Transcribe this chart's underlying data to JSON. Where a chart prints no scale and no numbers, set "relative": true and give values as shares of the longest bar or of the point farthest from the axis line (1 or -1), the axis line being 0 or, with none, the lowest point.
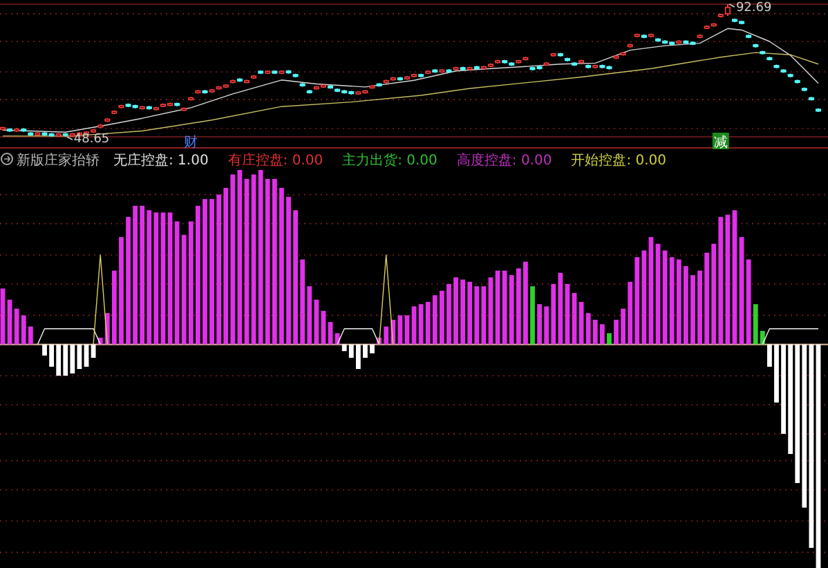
{
  "chart_data": [
    {
      "type": "candlestick",
      "categories": [
        null,
        null,
        null,
        null,
        null,
        null,
        null,
        null,
        null,
        null,
        null,
        null,
        null,
        null,
        null,
        null,
        null,
        null,
        null,
        null,
        null,
        null,
        null,
        null,
        null,
        null,
        null,
        null,
        null,
        null,
        null,
        null,
        null,
        null,
        null,
        null,
        null,
        null,
        null,
        null,
        null,
        null,
        null,
        null,
        null,
        null,
        null,
        null,
        null,
        null,
        null,
        null,
        null,
        null,
        null,
        null,
        null,
        null,
        null,
        null,
        null,
        null,
        null,
        null,
        null,
        null,
        null,
        null,
        null,
        null,
        null,
        null,
        null,
        null,
        null,
        null,
        null,
        null,
        null,
        null,
        null,
        null,
        null,
        null,
        null,
        null,
        null,
        null,
        null,
        null,
        null,
        null,
        null,
        null,
        null,
        null,
        null,
        null,
        null,
        null,
        null,
        null,
        null,
        null,
        null,
        null,
        null,
        null,
        null,
        null,
        null,
        null,
        null,
        null,
        null,
        null,
        null,
        null
      ],
      "ylim": [
        48.65,
        92.69
      ],
      "grid": true,
      "yticks": [
        {
          "value": 51.4,
          "label": null
        },
        {
          "value": 61.0,
          "label": null
        },
        {
          "value": 70.2,
          "label": null
        },
        {
          "value": 80.3,
          "label": null
        },
        {
          "value": 89.5,
          "label": null
        }
      ],
      "ohlc": [
        [
          51.1,
          52.0,
          50.8,
          51.7
        ],
        [
          51.2,
          51.5,
          50.3,
          50.6
        ],
        [
          50.6,
          51.5,
          50.3,
          51.2
        ],
        [
          51.2,
          51.5,
          50.3,
          50.6
        ],
        [
          49.9,
          50.2,
          49.0,
          49.3
        ],
        [
          49.3,
          50.2,
          49.0,
          49.9
        ],
        [
          49.9,
          50.2,
          49.0,
          49.3
        ],
        [
          49.6,
          49.9,
          48.7,
          49.0
        ],
        [
          49.0,
          49.9,
          48.7,
          49.6
        ],
        [
          49.6,
          49.9,
          48.65,
          49.3
        ],
        [
          49.0,
          49.9,
          48.7,
          49.6
        ],
        [
          49.3,
          50.2,
          49.0,
          49.9
        ],
        [
          49.6,
          50.5,
          49.3,
          50.2
        ],
        [
          50.3,
          51.2,
          50.0,
          50.9
        ],
        [
          51.9,
          52.8,
          51.6,
          52.5
        ],
        [
          53.9,
          54.8,
          53.6,
          54.5
        ],
        [
          56.5,
          57.4,
          56.2,
          57.1
        ],
        [
          58.4,
          59.3,
          58.1,
          59.0
        ],
        [
          59.4,
          59.7,
          58.5,
          58.8
        ],
        [
          59.0,
          59.3,
          58.1,
          58.4
        ],
        [
          58.0,
          58.9,
          57.7,
          58.6
        ],
        [
          58.6,
          58.9,
          57.7,
          58.0
        ],
        [
          57.7,
          58.6,
          57.4,
          58.3
        ],
        [
          58.8,
          59.7,
          58.5,
          59.4
        ],
        [
          59.1,
          60.0,
          58.8,
          59.7
        ],
        [
          59.7,
          60.0,
          58.8,
          59.1
        ],
        [
          57.5,
          58.4,
          57.2,
          58.1
        ],
        [
          61.0,
          61.9,
          60.7,
          61.6
        ],
        [
          63.3,
          64.2,
          63.0,
          63.9
        ],
        [
          63.9,
          64.2,
          63.0,
          63.3
        ],
        [
          63.6,
          64.5,
          63.3,
          64.2
        ],
        [
          64.6,
          65.5,
          64.3,
          65.2
        ],
        [
          65.2,
          66.1,
          64.9,
          65.8
        ],
        [
          66.7,
          67.6,
          66.4,
          67.3
        ],
        [
          67.8,
          68.1,
          66.9,
          67.2
        ],
        [
          66.7,
          67.6,
          66.4,
          67.3
        ],
        [
          68.2,
          69.1,
          67.9,
          68.8
        ],
        [
          70.4,
          70.7,
          69.5,
          69.8
        ],
        [
          69.8,
          70.7,
          69.5,
          70.4
        ],
        [
          70.4,
          70.7,
          69.5,
          69.8
        ],
        [
          69.8,
          70.7,
          69.5,
          70.4
        ],
        [
          70.5,
          70.8,
          69.6,
          69.9
        ],
        [
          69.3,
          69.6,
          68.4,
          68.7
        ],
        [
          66.2,
          66.5,
          65.3,
          65.6
        ],
        [
          63.9,
          64.2,
          63.0,
          63.3
        ],
        [
          64.6,
          65.5,
          64.3,
          65.2
        ],
        [
          65.2,
          66.1,
          64.9,
          65.8
        ],
        [
          65.5,
          65.8,
          64.6,
          64.9
        ],
        [
          64.4,
          64.7,
          63.5,
          63.8
        ],
        [
          63.9,
          64.2,
          63.0,
          63.3
        ],
        [
          63.6,
          63.9,
          62.7,
          63.0
        ],
        [
          62.9,
          63.8,
          62.6,
          63.5
        ],
        [
          63.3,
          64.2,
          63.0,
          63.9
        ],
        [
          64.9,
          65.8,
          64.6,
          65.5
        ],
        [
          66.2,
          66.5,
          65.3,
          65.6
        ],
        [
          66.7,
          67.6,
          66.4,
          67.3
        ],
        [
          67.6,
          68.5,
          67.3,
          68.2
        ],
        [
          68.2,
          68.5,
          67.3,
          67.6
        ],
        [
          67.9,
          68.8,
          67.6,
          68.5
        ],
        [
          68.7,
          69.6,
          68.4,
          69.3
        ],
        [
          69.3,
          69.6,
          68.4,
          68.7
        ],
        [
          69.8,
          70.7,
          69.5,
          70.4
        ],
        [
          70.8,
          71.1,
          69.9,
          70.2
        ],
        [
          70.2,
          71.1,
          69.9,
          70.8
        ],
        [
          70.8,
          71.1,
          69.9,
          70.2
        ],
        [
          71.0,
          71.9,
          70.7,
          71.6
        ],
        [
          71.6,
          71.9,
          70.7,
          71.0
        ],
        [
          71.0,
          71.9,
          70.7,
          71.6
        ],
        [
          71.9,
          72.2,
          71.0,
          71.3
        ],
        [
          71.3,
          72.2,
          71.0,
          71.9
        ],
        [
          72.1,
          73.0,
          71.8,
          72.7
        ],
        [
          73.3,
          74.2,
          73.0,
          73.9
        ],
        [
          73.9,
          74.2,
          73.0,
          73.3
        ],
        [
          73.1,
          73.4,
          72.2,
          72.5
        ],
        [
          73.3,
          74.2,
          73.0,
          73.9
        ],
        [
          74.3,
          75.2,
          74.0,
          74.9
        ],
        [
          71.6,
          71.9,
          70.7,
          71.0
        ],
        [
          71.9,
          72.2,
          71.0,
          71.3
        ],
        [
          72.5,
          73.4,
          72.2,
          73.1
        ],
        [
          75.6,
          76.5,
          75.3,
          76.2
        ],
        [
          76.2,
          76.5,
          75.3,
          75.6
        ],
        [
          74.6,
          74.9,
          73.7,
          74.0
        ],
        [
          73.1,
          73.4,
          72.2,
          72.5
        ],
        [
          73.3,
          74.2,
          73.0,
          73.9
        ],
        [
          72.3,
          72.6,
          71.4,
          71.7
        ],
        [
          71.7,
          72.6,
          71.4,
          72.3
        ],
        [
          72.3,
          72.6,
          71.4,
          71.7
        ],
        [
          71.9,
          72.2,
          71.0,
          71.3
        ],
        [
          74.8,
          75.7,
          74.5,
          75.4
        ],
        [
          75.9,
          76.8,
          75.6,
          76.5
        ],
        [
          78.6,
          79.5,
          78.3,
          79.2
        ],
        [
          82.0,
          82.9,
          81.7,
          82.6
        ],
        [
          82.3,
          82.6,
          81.4,
          81.7
        ],
        [
          82.0,
          82.9,
          81.7,
          82.6
        ],
        [
          81.1,
          81.4,
          80.2,
          80.5
        ],
        [
          80.4,
          80.7,
          79.5,
          79.8
        ],
        [
          80.0,
          80.3,
          79.1,
          79.4
        ],
        [
          79.8,
          80.7,
          79.5,
          80.4
        ],
        [
          80.4,
          80.7,
          79.5,
          79.8
        ],
        [
          80.0,
          80.3,
          79.1,
          79.4
        ],
        [
          81.7,
          82.6,
          81.4,
          82.3
        ],
        [
          84.7,
          85.6,
          84.4,
          85.3
        ],
        [
          85.5,
          86.4,
          85.2,
          86.1
        ],
        [
          88.6,
          89.5,
          88.3,
          89.2
        ],
        [
          89.5,
          92.69,
          88.8,
          91.6
        ],
        [
          87.6,
          87.9,
          86.7,
          87.0
        ],
        [
          86.9,
          87.2,
          86.0,
          86.3
        ],
        [
          82.3,
          82.6,
          81.4,
          81.7
        ],
        [
          79.2,
          79.5,
          78.3,
          78.6
        ],
        [
          76.9,
          77.2,
          76.0,
          76.3
        ],
        [
          74.9,
          75.2,
          74.0,
          74.3
        ],
        [
          72.3,
          72.6,
          71.4,
          71.7
        ],
        [
          70.8,
          71.1,
          69.9,
          70.2
        ],
        [
          69.3,
          69.6,
          68.4,
          68.7
        ],
        [
          67.3,
          67.6,
          66.4,
          66.7
        ],
        [
          64.7,
          65.0,
          63.8,
          64.1
        ],
        [
          61.6,
          61.9,
          60.7,
          61.0
        ],
        [
          57.8,
          58.1,
          56.9,
          57.2
        ]
      ],
      "series": [
        {
          "type": "line",
          "color": "#d8d8d8",
          "values": [
            50.9,
            null,
            null,
            null,
            null,
            null,
            null,
            null,
            null,
            50.2,
            null,
            null,
            null,
            null,
            null,
            52.6,
            null,
            null,
            null,
            null,
            54.8,
            null,
            null,
            null,
            null,
            null,
            null,
            58.3,
            null,
            null,
            null,
            null,
            null,
            62.9,
            null,
            null,
            null,
            null,
            null,
            null,
            67.5,
            null,
            null,
            null,
            null,
            66.2,
            null,
            null,
            null,
            null,
            null,
            null,
            65.2,
            null,
            null,
            null,
            null,
            null,
            null,
            67.4,
            null,
            null,
            null,
            null,
            null,
            70.5,
            null,
            null,
            null,
            null,
            71.3,
            null,
            null,
            null,
            null,
            72.0,
            null,
            null,
            null,
            null,
            72.8,
            null,
            null,
            null,
            null,
            73.1,
            null,
            null,
            null,
            null,
            77.4,
            null,
            null,
            null,
            null,
            78.9,
            null,
            null,
            null,
            null,
            79.7,
            null,
            null,
            null,
            84.6,
            null,
            84.1,
            null,
            null,
            null,
            80.3,
            null,
            null,
            75.7,
            null,
            null,
            null,
            66.4
          ]
        },
        {
          "type": "line",
          "color": "#c8c060",
          "values": [
            48.9,
            null,
            null,
            null,
            null,
            null,
            null,
            null,
            null,
            null,
            48.9,
            null,
            null,
            null,
            null,
            null,
            null,
            null,
            null,
            null,
            50.6,
            null,
            null,
            null,
            null,
            null,
            null,
            null,
            null,
            null,
            54.2,
            null,
            null,
            null,
            null,
            null,
            null,
            null,
            null,
            null,
            58.7,
            null,
            null,
            null,
            null,
            null,
            null,
            null,
            null,
            null,
            60.2,
            null,
            null,
            null,
            null,
            null,
            null,
            null,
            null,
            null,
            62.4,
            null,
            null,
            null,
            null,
            null,
            null,
            64.7,
            null,
            null,
            null,
            null,
            null,
            null,
            null,
            null,
            null,
            null,
            null,
            null,
            null,
            null,
            null,
            68.5,
            null,
            null,
            null,
            null,
            null,
            null,
            null,
            null,
            null,
            71.3,
            null,
            null,
            null,
            null,
            null,
            null,
            null,
            null,
            null,
            75.1,
            null,
            null,
            null,
            null,
            76.6,
            null,
            null,
            null,
            null,
            75.9,
            null,
            null,
            null,
            72.8
          ]
        }
      ],
      "annotations": [
        "财",
        "减",
        "92.69",
        "48.65"
      ]
    },
    {
      "type": "bar",
      "title": "新版庄家抬轿",
      "relative": true,
      "ref_lines": [
        {
          "axis": "y",
          "value": 0,
          "color": "#e8c0a0",
          "line_style": "solid"
        },
        {
          "axis": "y",
          "value": 0.67,
          "color": "#802020",
          "line_style": "dotted"
        },
        {
          "axis": "y",
          "value": 0.54,
          "color": "#802020",
          "line_style": "dotted"
        },
        {
          "axis": "y",
          "value": 0.4,
          "color": "#802020",
          "line_style": "dotted"
        },
        {
          "axis": "y",
          "value": 0.27,
          "color": "#802020",
          "line_style": "dotted"
        },
        {
          "axis": "y",
          "value": 0.13,
          "color": "#802020",
          "line_style": "dotted"
        },
        {
          "axis": "y",
          "value": -0.14,
          "color": "#802020",
          "line_style": "dotted"
        },
        {
          "axis": "y",
          "value": -0.27,
          "color": "#802020",
          "line_style": "dotted"
        },
        {
          "axis": "y",
          "value": -0.4,
          "color": "#802020",
          "line_style": "dotted"
        },
        {
          "axis": "y",
          "value": -0.52,
          "color": "#802020",
          "line_style": "dotted"
        },
        {
          "axis": "y",
          "value": -0.65,
          "color": "#802020",
          "line_style": "dotted"
        },
        {
          "axis": "y",
          "value": -0.79,
          "color": "#802020",
          "line_style": "dotted"
        },
        {
          "axis": "y",
          "value": -0.93,
          "color": "#802020",
          "line_style": "dotted"
        }
      ],
      "categories": [
        null,
        null,
        null,
        null,
        null,
        null,
        null,
        null,
        null,
        null,
        null,
        null,
        null,
        null,
        null,
        null,
        null,
        null,
        null,
        null,
        null,
        null,
        null,
        null,
        null,
        null,
        null,
        null,
        null,
        null,
        null,
        null,
        null,
        null,
        null,
        null,
        null,
        null,
        null,
        null,
        null,
        null,
        null,
        null,
        null,
        null,
        null,
        null,
        null,
        null,
        null,
        null,
        null,
        null,
        null,
        null,
        null,
        null,
        null,
        null,
        null,
        null,
        null,
        null,
        null,
        null,
        null,
        null,
        null,
        null,
        null,
        null,
        null,
        null,
        null,
        null,
        null,
        null,
        null,
        null,
        null,
        null,
        null,
        null,
        null,
        null,
        null,
        null,
        null,
        null,
        null,
        null,
        null,
        null,
        null,
        null,
        null,
        null,
        null,
        null,
        null,
        null,
        null,
        null,
        null,
        null,
        null,
        null,
        null,
        null,
        null,
        null,
        null,
        null,
        null,
        null,
        null,
        null
      ],
      "annotations": [
        "无庄控盘: 1.00",
        "有庄控盘: 0.00",
        "主力出货: 0.00",
        "高度控盘: 0.00",
        "开始控盘: 0.00"
      ],
      "series": [
        {
          "type": "bar",
          "values": [
            0.25,
            0.2,
            0.16,
            0.13,
            0.08,
            null,
            -0.05,
            -0.1,
            -0.14,
            -0.14,
            -0.13,
            -0.11,
            -0.1,
            -0.06,
            0.03,
            0.14,
            0.33,
            0.48,
            0.57,
            0.62,
            0.62,
            0.6,
            0.59,
            0.59,
            0.59,
            0.55,
            0.49,
            0.55,
            0.62,
            0.65,
            0.65,
            0.67,
            0.7,
            0.76,
            0.78,
            0.74,
            0.76,
            0.78,
            0.74,
            0.74,
            0.7,
            0.66,
            0.6,
            0.38,
            0.26,
            0.2,
            0.15,
            0.1,
            0.05,
            -0.03,
            -0.06,
            -0.11,
            -0.06,
            -0.04,
            0.03,
            0.08,
            0.11,
            0.13,
            0.13,
            0.17,
            0.18,
            0.19,
            0.22,
            0.24,
            0.27,
            0.3,
            0.29,
            0.28,
            0.26,
            0.26,
            0.3,
            0.33,
            0.33,
            0.31,
            0.34,
            0.37,
            0.26,
            0.18,
            0.17,
            0.27,
            0.32,
            0.27,
            0.23,
            0.19,
            0.14,
            0.11,
            0.09,
            0.05,
            0.11,
            0.16,
            0.28,
            0.39,
            0.42,
            0.48,
            0.45,
            0.42,
            0.39,
            0.38,
            0.35,
            0.31,
            0.33,
            0.41,
            0.45,
            0.57,
            0.58,
            0.6,
            0.48,
            0.38,
            0.18,
            0.06,
            -0.1,
            -0.26,
            -0.4,
            -0.49,
            -0.62,
            -0.73,
            -0.91,
            -1
          ],
          "colors": [
            "#e030e8",
            "#e030e8",
            "#e030e8",
            "#e030e8",
            "#e030e8",
            null,
            "#ffffff",
            "#ffffff",
            "#ffffff",
            "#ffffff",
            "#ffffff",
            "#ffffff",
            "#ffffff",
            "#ffffff",
            "#e030e8",
            "#e030e8",
            "#e030e8",
            "#e030e8",
            "#e030e8",
            "#e030e8",
            "#e030e8",
            "#e030e8",
            "#e030e8",
            "#e030e8",
            "#e030e8",
            "#e030e8",
            "#e030e8",
            "#e030e8",
            "#e030e8",
            "#e030e8",
            "#e030e8",
            "#e030e8",
            "#e030e8",
            "#e030e8",
            "#e030e8",
            "#e030e8",
            "#e030e8",
            "#e030e8",
            "#e030e8",
            "#e030e8",
            "#e030e8",
            "#e030e8",
            "#e030e8",
            "#e030e8",
            "#e030e8",
            "#e030e8",
            "#e030e8",
            "#e030e8",
            "#e030e8",
            "#ffffff",
            "#ffffff",
            "#ffffff",
            "#ffffff",
            "#ffffff",
            "#e030e8",
            "#e030e8",
            "#e030e8",
            "#e030e8",
            "#e030e8",
            "#e030e8",
            "#e030e8",
            "#e030e8",
            "#e030e8",
            "#e030e8",
            "#e030e8",
            "#e030e8",
            "#e030e8",
            "#e030e8",
            "#e030e8",
            "#e030e8",
            "#e030e8",
            "#e030e8",
            "#e030e8",
            "#e030e8",
            "#e030e8",
            "#e030e8",
            "#30d030",
            "#e030e8",
            "#e030e8",
            "#e030e8",
            "#e030e8",
            "#e030e8",
            "#e030e8",
            "#e030e8",
            "#e030e8",
            "#e030e8",
            "#e030e8",
            "#30d030",
            "#e030e8",
            "#e030e8",
            "#e030e8",
            "#e030e8",
            "#e030e8",
            "#e030e8",
            "#e030e8",
            "#e030e8",
            "#e030e8",
            "#e030e8",
            "#e030e8",
            "#e030e8",
            "#e030e8",
            "#e030e8",
            "#e030e8",
            "#e030e8",
            "#e030e8",
            "#e030e8",
            "#e030e8",
            "#e030e8",
            "#30d030",
            "#30d030",
            "#ffffff",
            "#ffffff",
            "#ffffff",
            "#ffffff",
            "#ffffff",
            "#ffffff",
            "#ffffff",
            "#ffffff"
          ]
        },
        {
          "type": "line",
          "color": "#f0f0f0",
          "values": [
            null,
            null,
            null,
            null,
            null,
            0,
            0.07,
            0.07,
            0.07,
            0.07,
            0.07,
            0.07,
            0.07,
            0.07,
            0,
            null,
            null,
            null,
            null,
            null,
            null,
            null,
            null,
            null,
            null,
            null,
            null,
            null,
            null,
            null,
            null,
            null,
            null,
            null,
            null,
            null,
            null,
            null,
            null,
            null,
            null,
            null,
            null,
            null,
            null,
            null,
            null,
            null,
            null,
            null,
            null,
            null,
            null,
            null,
            null,
            null,
            null,
            null,
            null,
            null,
            null,
            null,
            null,
            null,
            null,
            null,
            null,
            null,
            null,
            null,
            null,
            null,
            null,
            null,
            null,
            null,
            null,
            null,
            null,
            null,
            null,
            null,
            null,
            null,
            null,
            null,
            null,
            null,
            null,
            null,
            null,
            null,
            null,
            null,
            null,
            null,
            null,
            null,
            null,
            null,
            null,
            null,
            null,
            null,
            null,
            null,
            null,
            null,
            null,
            null,
            null,
            null,
            null,
            null,
            null,
            null,
            null,
            null
          ]
        },
        {
          "type": "line",
          "color": "#d8d060",
          "values": [
            null,
            null,
            null,
            null,
            null,
            null,
            null,
            null,
            null,
            null,
            null,
            null,
            null,
            0,
            0.4,
            0,
            null,
            null,
            null,
            null,
            null,
            null,
            null,
            null,
            null,
            null,
            null,
            null,
            null,
            null,
            null,
            null,
            null,
            null,
            null,
            null,
            null,
            null,
            null,
            null,
            null,
            null,
            null,
            null,
            null,
            null,
            null,
            null,
            null,
            null,
            null,
            null,
            null,
            null,
            null,
            null,
            null,
            null,
            null,
            null,
            null,
            null,
            null,
            null,
            null,
            null,
            null,
            null,
            null,
            null,
            null,
            null,
            null,
            null,
            null,
            null,
            null,
            null,
            null,
            null,
            null,
            null,
            null,
            null,
            null,
            null,
            null,
            null,
            null,
            null,
            null,
            null,
            null,
            null,
            null,
            null,
            null,
            null,
            null,
            null,
            null,
            null,
            null,
            null,
            null,
            null,
            null,
            null,
            null,
            null,
            null,
            null,
            null,
            null,
            null,
            null,
            null,
            null
          ]
        },
        {
          "type": "line",
          "color": "#f0f0f0",
          "values": [
            null,
            null,
            null,
            null,
            null,
            null,
            null,
            null,
            null,
            null,
            null,
            null,
            null,
            null,
            null,
            null,
            null,
            null,
            null,
            null,
            null,
            null,
            null,
            null,
            null,
            null,
            null,
            null,
            null,
            null,
            null,
            null,
            null,
            null,
            null,
            null,
            null,
            null,
            null,
            null,
            null,
            null,
            null,
            null,
            null,
            null,
            null,
            null,
            0,
            0.07,
            0.07,
            0.07,
            0.07,
            0.07,
            0,
            null,
            null,
            null,
            null,
            null,
            null,
            null,
            null,
            null,
            null,
            null,
            null,
            null,
            null,
            null,
            null,
            null,
            null,
            null,
            null,
            null,
            null,
            null,
            null,
            null,
            null,
            null,
            null,
            null,
            null,
            null,
            null,
            null,
            null,
            null,
            null,
            null,
            null,
            null,
            null,
            null,
            null,
            null,
            null,
            null,
            null,
            null,
            null,
            null,
            null,
            null,
            null,
            null,
            null,
            null,
            null,
            null,
            null,
            null,
            null,
            null,
            null,
            null
          ]
        },
        {
          "type": "line",
          "color": "#d8d060",
          "values": [
            null,
            null,
            null,
            null,
            null,
            null,
            null,
            null,
            null,
            null,
            null,
            null,
            null,
            null,
            null,
            null,
            null,
            null,
            null,
            null,
            null,
            null,
            null,
            null,
            null,
            null,
            null,
            null,
            null,
            null,
            null,
            null,
            null,
            null,
            null,
            null,
            null,
            null,
            null,
            null,
            null,
            null,
            null,
            null,
            null,
            null,
            null,
            null,
            null,
            null,
            null,
            null,
            null,
            null,
            0,
            0.4,
            0,
            null,
            null,
            null,
            null,
            null,
            null,
            null,
            null,
            null,
            null,
            null,
            null,
            null,
            null,
            null,
            null,
            null,
            null,
            null,
            null,
            null,
            null,
            null,
            null,
            null,
            null,
            null,
            null,
            null,
            null,
            null,
            null,
            null,
            null,
            null,
            null,
            null,
            null,
            null,
            null,
            null,
            null,
            null,
            null,
            null,
            null,
            null,
            null,
            null,
            null,
            null,
            null,
            null,
            null,
            null,
            null,
            null,
            null,
            null,
            null,
            null
          ]
        },
        {
          "type": "line",
          "color": "#f0f0f0",
          "values": [
            null,
            null,
            null,
            null,
            null,
            null,
            null,
            null,
            null,
            null,
            null,
            null,
            null,
            null,
            null,
            null,
            null,
            null,
            null,
            null,
            null,
            null,
            null,
            null,
            null,
            null,
            null,
            null,
            null,
            null,
            null,
            null,
            null,
            null,
            null,
            null,
            null,
            null,
            null,
            null,
            null,
            null,
            null,
            null,
            null,
            null,
            null,
            null,
            null,
            null,
            null,
            null,
            null,
            null,
            null,
            null,
            null,
            null,
            null,
            null,
            null,
            null,
            null,
            null,
            null,
            null,
            null,
            null,
            null,
            null,
            null,
            null,
            null,
            null,
            null,
            null,
            null,
            null,
            null,
            null,
            null,
            null,
            null,
            null,
            null,
            null,
            null,
            null,
            null,
            null,
            null,
            null,
            null,
            null,
            null,
            null,
            null,
            null,
            null,
            null,
            null,
            null,
            null,
            null,
            null,
            null,
            null,
            null,
            null,
            0,
            0.07,
            0.07,
            0.07,
            0.07,
            0.07,
            0.07,
            0.07,
            0.07
          ]
        }
      ]
    }
  ]
}
